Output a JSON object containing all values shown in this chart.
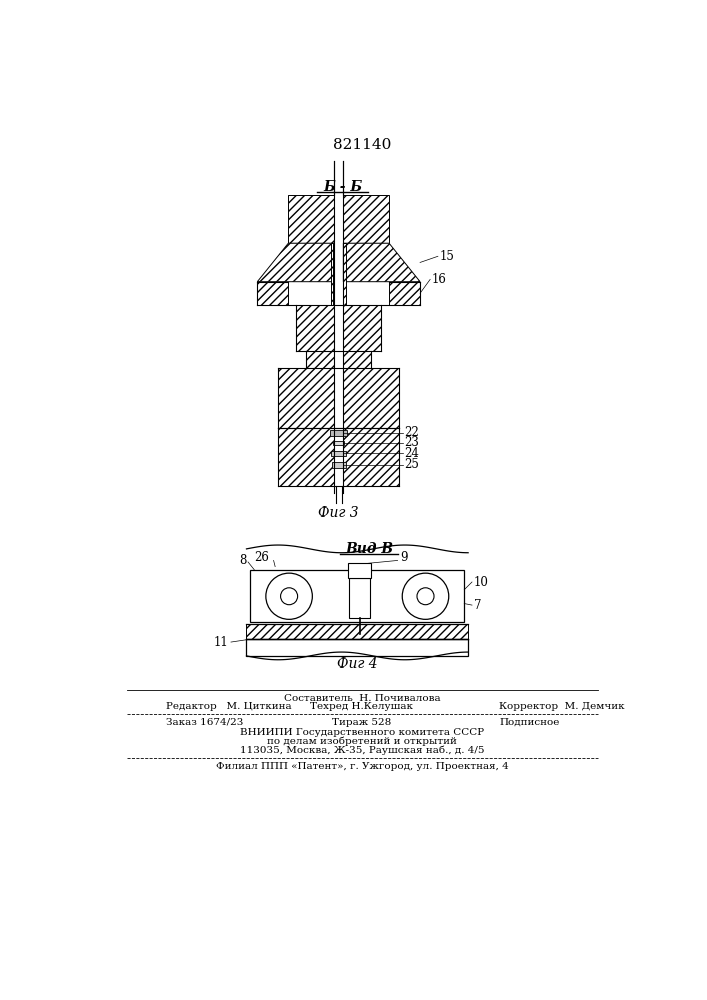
{
  "patent_number": "821140",
  "fig3_label": "Фиг 3",
  "fig4_label": "Фиг 4",
  "section_label": "Б - Б",
  "view_label": "Вид В",
  "bg_color": "#ffffff",
  "footer_col1_row1": "Редактор   М. Циткина",
  "footer_col2_row1a": "Составитель  Н. Почивалова",
  "footer_col2_row1b": "Техред Н.Келушак",
  "footer_col3_row1": "Корректор  М. Демчик",
  "footer_zakaz": "Заказ 1674/23",
  "footer_tirazh": "Тираж 528",
  "footer_podpisnoe": "Подписное",
  "footer_vniipи": "ВНИИПИ Государственного комитета СССР",
  "footer_po_delam": "по делам изобретений и открытий",
  "footer_address": "113035, Москва, Ж-35, Раушская наб., д. 4/5",
  "footer_filial": "Филиал ППП «Патент», г. Ужгород, ул. Проектная, 4"
}
